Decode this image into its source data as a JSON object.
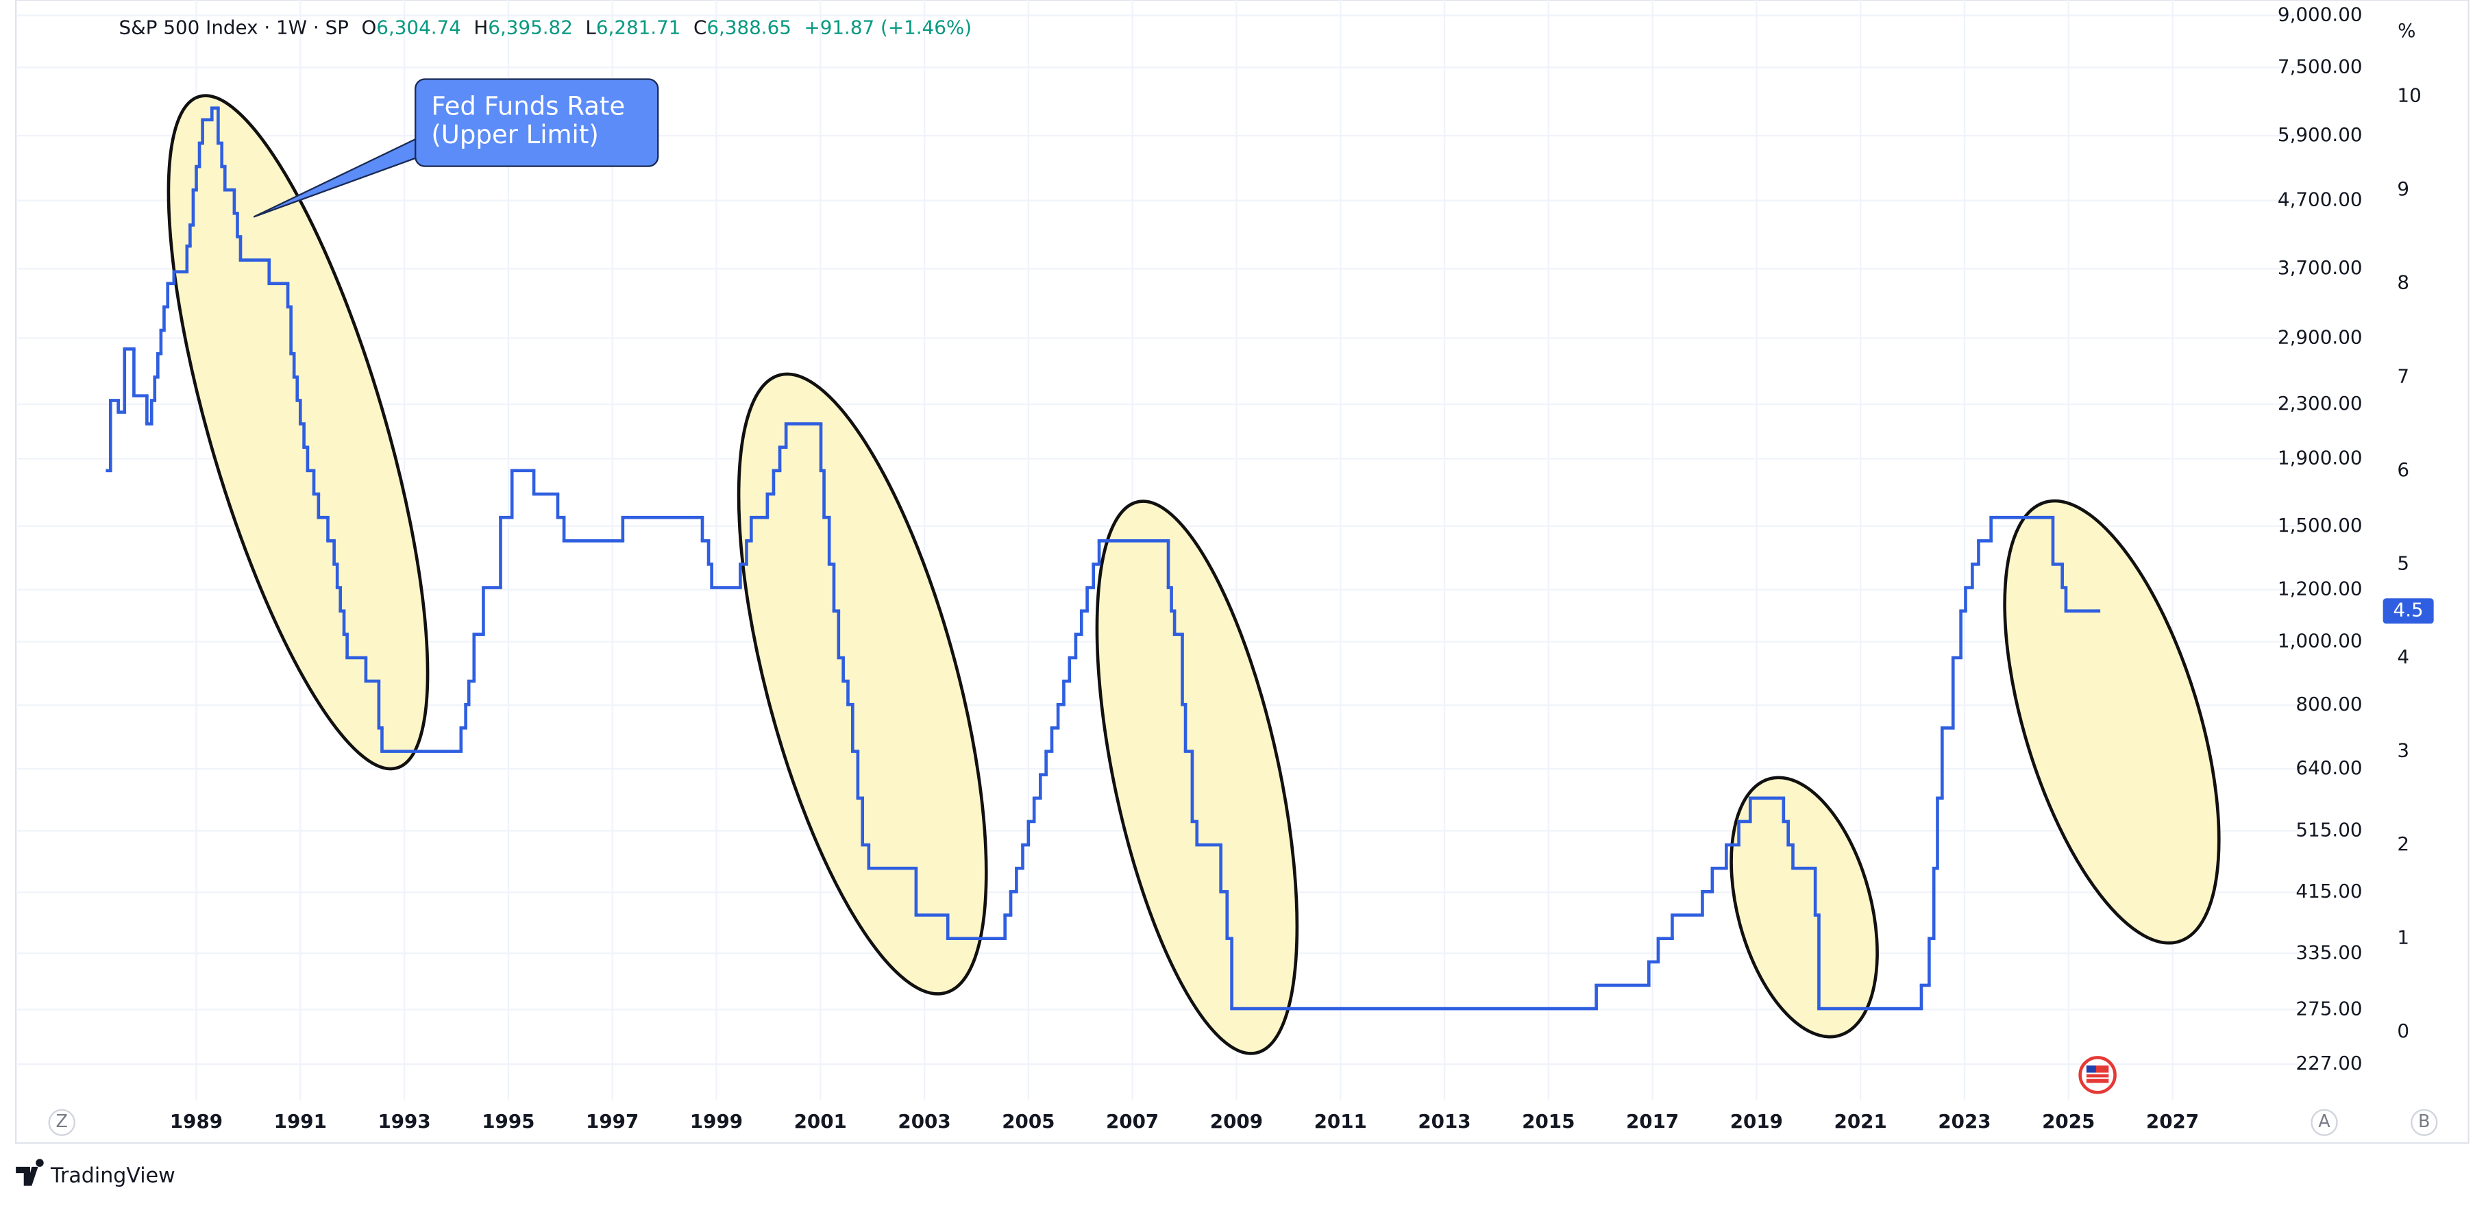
{
  "chart_data": {
    "type": "line",
    "title": "S&P 500 Index · 1W · SP",
    "ohlc": [
      {
        "label": "O",
        "value": "6,304.74"
      },
      {
        "label": "H",
        "value": "6,395.82"
      },
      {
        "label": "L",
        "value": "6,281.71"
      },
      {
        "label": "C",
        "value": "6,388.65"
      }
    ],
    "change": "+91.87 (+1.46%)",
    "annotation": [
      "Fed Funds Rate",
      "(Upper Limit)"
    ],
    "y2_label": "%",
    "step": true,
    "grid": true,
    "log_scale": true,
    "x": [
      1987.29,
      1987.35,
      1987.5,
      1987.62,
      1987.8,
      1988.05,
      1988.14,
      1988.2,
      1988.26,
      1988.32,
      1988.38,
      1988.45,
      1988.57,
      1988.82,
      1988.88,
      1988.94,
      1989.0,
      1989.06,
      1989.12,
      1989.3,
      1989.42,
      1989.49,
      1989.55,
      1989.73,
      1989.79,
      1989.85,
      1990.4,
      1990.76,
      1990.82,
      1990.88,
      1990.94,
      1991.0,
      1991.07,
      1991.14,
      1991.26,
      1991.35,
      1991.53,
      1991.65,
      1991.71,
      1991.77,
      1991.84,
      1991.9,
      1992.26,
      1992.51,
      1992.57,
      1994.09,
      1994.18,
      1994.24,
      1994.34,
      1994.52,
      1994.85,
      1995.07,
      1995.49,
      1995.95,
      1996.07,
      1997.2,
      1998.73,
      1998.85,
      1998.91,
      1999.46,
      1999.58,
      1999.67,
      1999.98,
      2000.1,
      2000.22,
      2000.34,
      2001.01,
      2001.07,
      2001.17,
      2001.26,
      2001.35,
      2001.44,
      2001.53,
      2001.62,
      2001.72,
      2001.81,
      2001.93,
      2002.84,
      2003.45,
      2004.55,
      2004.66,
      2004.77,
      2004.89,
      2005.0,
      2005.11,
      2005.23,
      2005.34,
      2005.45,
      2005.57,
      2005.68,
      2005.79,
      2005.91,
      2006.02,
      2006.13,
      2006.25,
      2006.36,
      2007.69,
      2007.75,
      2007.81,
      2007.96,
      2008.02,
      2008.15,
      2008.24,
      2008.7,
      2008.82,
      2008.91,
      2015.92,
      2016.93,
      2017.11,
      2017.38,
      2017.96,
      2018.15,
      2018.42,
      2018.66,
      2018.88,
      2019.52,
      2019.61,
      2019.7,
      2020.13,
      2020.2,
      2022.17,
      2022.32,
      2022.41,
      2022.48,
      2022.57,
      2022.78,
      2022.93,
      2023.02,
      2023.15,
      2023.27,
      2023.51,
      2024.7,
      2024.88,
      2024.95,
      2025.55
    ],
    "series": [
      {
        "color": "#2f5fe0",
        "axis": "y2",
        "values": [
          6.0,
          6.75,
          6.625,
          7.3,
          6.8,
          6.5,
          6.75,
          7.0,
          7.25,
          7.5,
          7.75,
          8.0,
          8.125,
          8.4,
          8.625,
          9.0,
          9.25,
          9.5,
          9.75,
          9.875,
          9.5,
          9.25,
          9.0,
          8.75,
          8.5,
          8.25,
          8.0,
          7.75,
          7.25,
          7.0,
          6.75,
          6.5,
          6.25,
          6.0,
          5.75,
          5.5,
          5.25,
          5.0,
          4.75,
          4.5,
          4.25,
          4.0,
          3.75,
          3.25,
          3.0,
          3.25,
          3.5,
          3.75,
          4.25,
          4.75,
          5.5,
          6.0,
          5.75,
          5.5,
          5.25,
          5.5,
          5.25,
          5.0,
          4.75,
          5.0,
          5.25,
          5.5,
          5.75,
          6.0,
          6.25,
          6.5,
          6.0,
          5.5,
          5.0,
          4.5,
          4.0,
          3.75,
          3.5,
          3.0,
          2.5,
          2.0,
          1.75,
          1.25,
          1.0,
          1.25,
          1.5,
          1.75,
          2.0,
          2.25,
          2.5,
          2.75,
          3.0,
          3.25,
          3.5,
          3.75,
          4.0,
          4.25,
          4.5,
          4.75,
          5.0,
          5.25,
          4.75,
          4.5,
          4.25,
          3.5,
          3.0,
          2.25,
          2.0,
          1.5,
          1.0,
          0.25,
          0.5,
          0.75,
          1.0,
          1.25,
          1.5,
          1.75,
          2.0,
          2.25,
          2.5,
          2.25,
          2.0,
          1.75,
          1.25,
          0.25,
          0.5,
          1.0,
          1.75,
          2.5,
          3.25,
          4.0,
          4.5,
          4.75,
          5.0,
          5.25,
          5.5,
          5.0,
          4.75,
          4.5,
          4.5
        ]
      }
    ],
    "xlim": [
      1985.53,
      2029.43
    ],
    "xticks": [
      1989,
      1991,
      1993,
      1995,
      1997,
      1999,
      2001,
      2003,
      2005,
      2007,
      2009,
      2011,
      2013,
      2015,
      2017,
      2019,
      2021,
      2023,
      2025,
      2027
    ],
    "ylim": [
      200,
      9500
    ],
    "yticks": [
      {
        "value": 9000,
        "label": "9,000.00"
      },
      {
        "value": 7500,
        "label": "7,500.00"
      },
      {
        "value": 5900,
        "label": "5,900.00"
      },
      {
        "value": 4700,
        "label": "4,700.00"
      },
      {
        "value": 3700,
        "label": "3,700.00"
      },
      {
        "value": 2900,
        "label": "2,900.00"
      },
      {
        "value": 2300,
        "label": "2,300.00"
      },
      {
        "value": 1900,
        "label": "1,900.00"
      },
      {
        "value": 1500,
        "label": "1,500.00"
      },
      {
        "value": 1200,
        "label": "1,200.00"
      },
      {
        "value": 1000,
        "label": "1,000.00"
      },
      {
        "value": 800,
        "label": "800.00"
      },
      {
        "value": 640,
        "label": "640.00"
      },
      {
        "value": 515,
        "label": "515.00"
      },
      {
        "value": 415,
        "label": "415.00"
      },
      {
        "value": 335,
        "label": "335.00"
      },
      {
        "value": 275,
        "label": "275.00"
      },
      {
        "value": 227,
        "label": "227.00"
      }
    ],
    "y2lim": [
      -0.73,
      11.03
    ],
    "y2ticks": [
      0,
      1,
      2,
      3,
      4,
      5,
      6,
      7,
      8,
      9,
      10
    ]
  },
  "ui": {
    "buttons": [
      "Z",
      "A",
      "B"
    ],
    "brand": "TradingView"
  }
}
